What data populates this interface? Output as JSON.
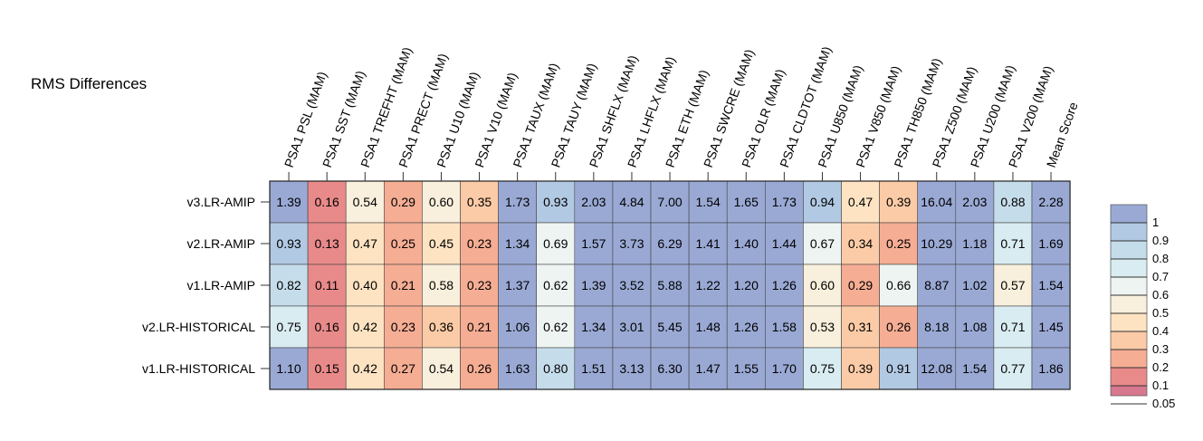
{
  "chart_data": {
    "type": "heatmap",
    "title": "RMS Differences",
    "columns": [
      "PSA1 PSL (MAM)",
      "PSA1 SST (MAM)",
      "PSA1 TREFHT (MAM)",
      "PSA1 PRECT (MAM)",
      "PSA1 U10 (MAM)",
      "PSA1 V10 (MAM)",
      "PSA1 TAUX (MAM)",
      "PSA1 TAUY (MAM)",
      "PSA1 SHFLX (MAM)",
      "PSA1 LHFLX (MAM)",
      "PSA1 ETH (MAM)",
      "PSA1 SWCRE (MAM)",
      "PSA1 OLR (MAM)",
      "PSA1 CLDTOT (MAM)",
      "PSA1 U850 (MAM)",
      "PSA1 V850 (MAM)",
      "PSA1 TH850 (MAM)",
      "PSA1 Z500 (MAM)",
      "PSA1 U200 (MAM)",
      "PSA1 V200 (MAM)",
      "Mean Score"
    ],
    "rows": [
      "v3.LR-AMIP",
      "v2.LR-AMIP",
      "v1.LR-AMIP",
      "v2.LR-HISTORICAL",
      "v1.LR-HISTORICAL"
    ],
    "values": [
      [
        "1.39",
        "0.16",
        "0.54",
        "0.29",
        "0.60",
        "0.35",
        "1.73",
        "0.93",
        "2.03",
        "4.84",
        "7.00",
        "1.54",
        "1.65",
        "1.73",
        "0.94",
        "0.47",
        "0.39",
        "16.04",
        "2.03",
        "0.88",
        "2.28"
      ],
      [
        "0.93",
        "0.13",
        "0.47",
        "0.25",
        "0.45",
        "0.23",
        "1.34",
        "0.69",
        "1.57",
        "3.73",
        "6.29",
        "1.41",
        "1.40",
        "1.44",
        "0.67",
        "0.34",
        "0.25",
        "10.29",
        "1.18",
        "0.71",
        "1.69"
      ],
      [
        "0.82",
        "0.11",
        "0.40",
        "0.21",
        "0.58",
        "0.23",
        "1.37",
        "0.62",
        "1.39",
        "3.52",
        "5.88",
        "1.22",
        "1.20",
        "1.26",
        "0.60",
        "0.29",
        "0.66",
        "8.87",
        "1.02",
        "0.57",
        "1.54"
      ],
      [
        "0.75",
        "0.16",
        "0.42",
        "0.23",
        "0.36",
        "0.21",
        "1.06",
        "0.62",
        "1.34",
        "3.01",
        "5.45",
        "1.48",
        "1.26",
        "1.58",
        "0.53",
        "0.31",
        "0.26",
        "8.18",
        "1.08",
        "0.71",
        "1.45"
      ],
      [
        "1.10",
        "0.15",
        "0.42",
        "0.27",
        "0.54",
        "0.26",
        "1.63",
        "0.80",
        "1.51",
        "3.13",
        "6.30",
        "1.47",
        "1.55",
        "1.70",
        "0.75",
        "0.39",
        "0.91",
        "12.08",
        "1.54",
        "0.77",
        "1.86"
      ]
    ],
    "colorbar": {
      "ticks": [
        "1",
        "0.9",
        "0.8",
        "0.7",
        "0.6",
        "0.5",
        "0.4",
        "0.3",
        "0.2",
        "0.1",
        "0.05"
      ],
      "colors": [
        "#9aa9d4",
        "#b2c9e3",
        "#c5dcea",
        "#d9ecf1",
        "#eef4f2",
        "#f8efdc",
        "#fde3c2",
        "#fbcba7",
        "#f5ad94",
        "#e98a8a",
        "#d7788f"
      ]
    }
  }
}
